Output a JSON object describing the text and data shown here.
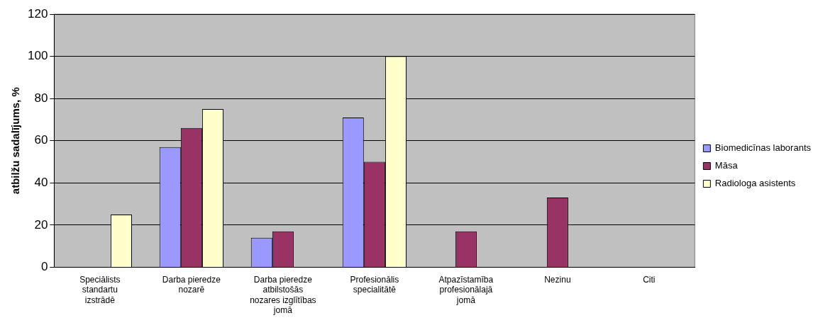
{
  "chart_data": {
    "type": "bar",
    "ylabel": "atbilžu sadalījums, %",
    "categories": [
      "Speciālists standartu izstrādē",
      "Darba pieredze nozarē",
      "Darba pieredze atbilstošās nozares izglītības jomā",
      "Profesionālis specialitātē",
      "Atpazīstamība profesionālajā jomā",
      "Nezinu",
      "Citi"
    ],
    "series": [
      {
        "name": "Biomedicīnas laborants",
        "color": "#9999ff",
        "values": [
          null,
          57,
          14,
          71,
          null,
          null,
          null
        ]
      },
      {
        "name": "Māsa",
        "color": "#993366",
        "values": [
          null,
          66,
          17,
          50,
          17,
          33,
          null
        ]
      },
      {
        "name": "Radiologa asistents",
        "color": "#ffffcc",
        "values": [
          25,
          75,
          null,
          100,
          null,
          null,
          null
        ]
      }
    ],
    "ylim": [
      0,
      120
    ],
    "yticks": [
      0,
      20,
      40,
      60,
      80,
      100,
      120
    ],
    "grid": "y",
    "legend": "right"
  }
}
